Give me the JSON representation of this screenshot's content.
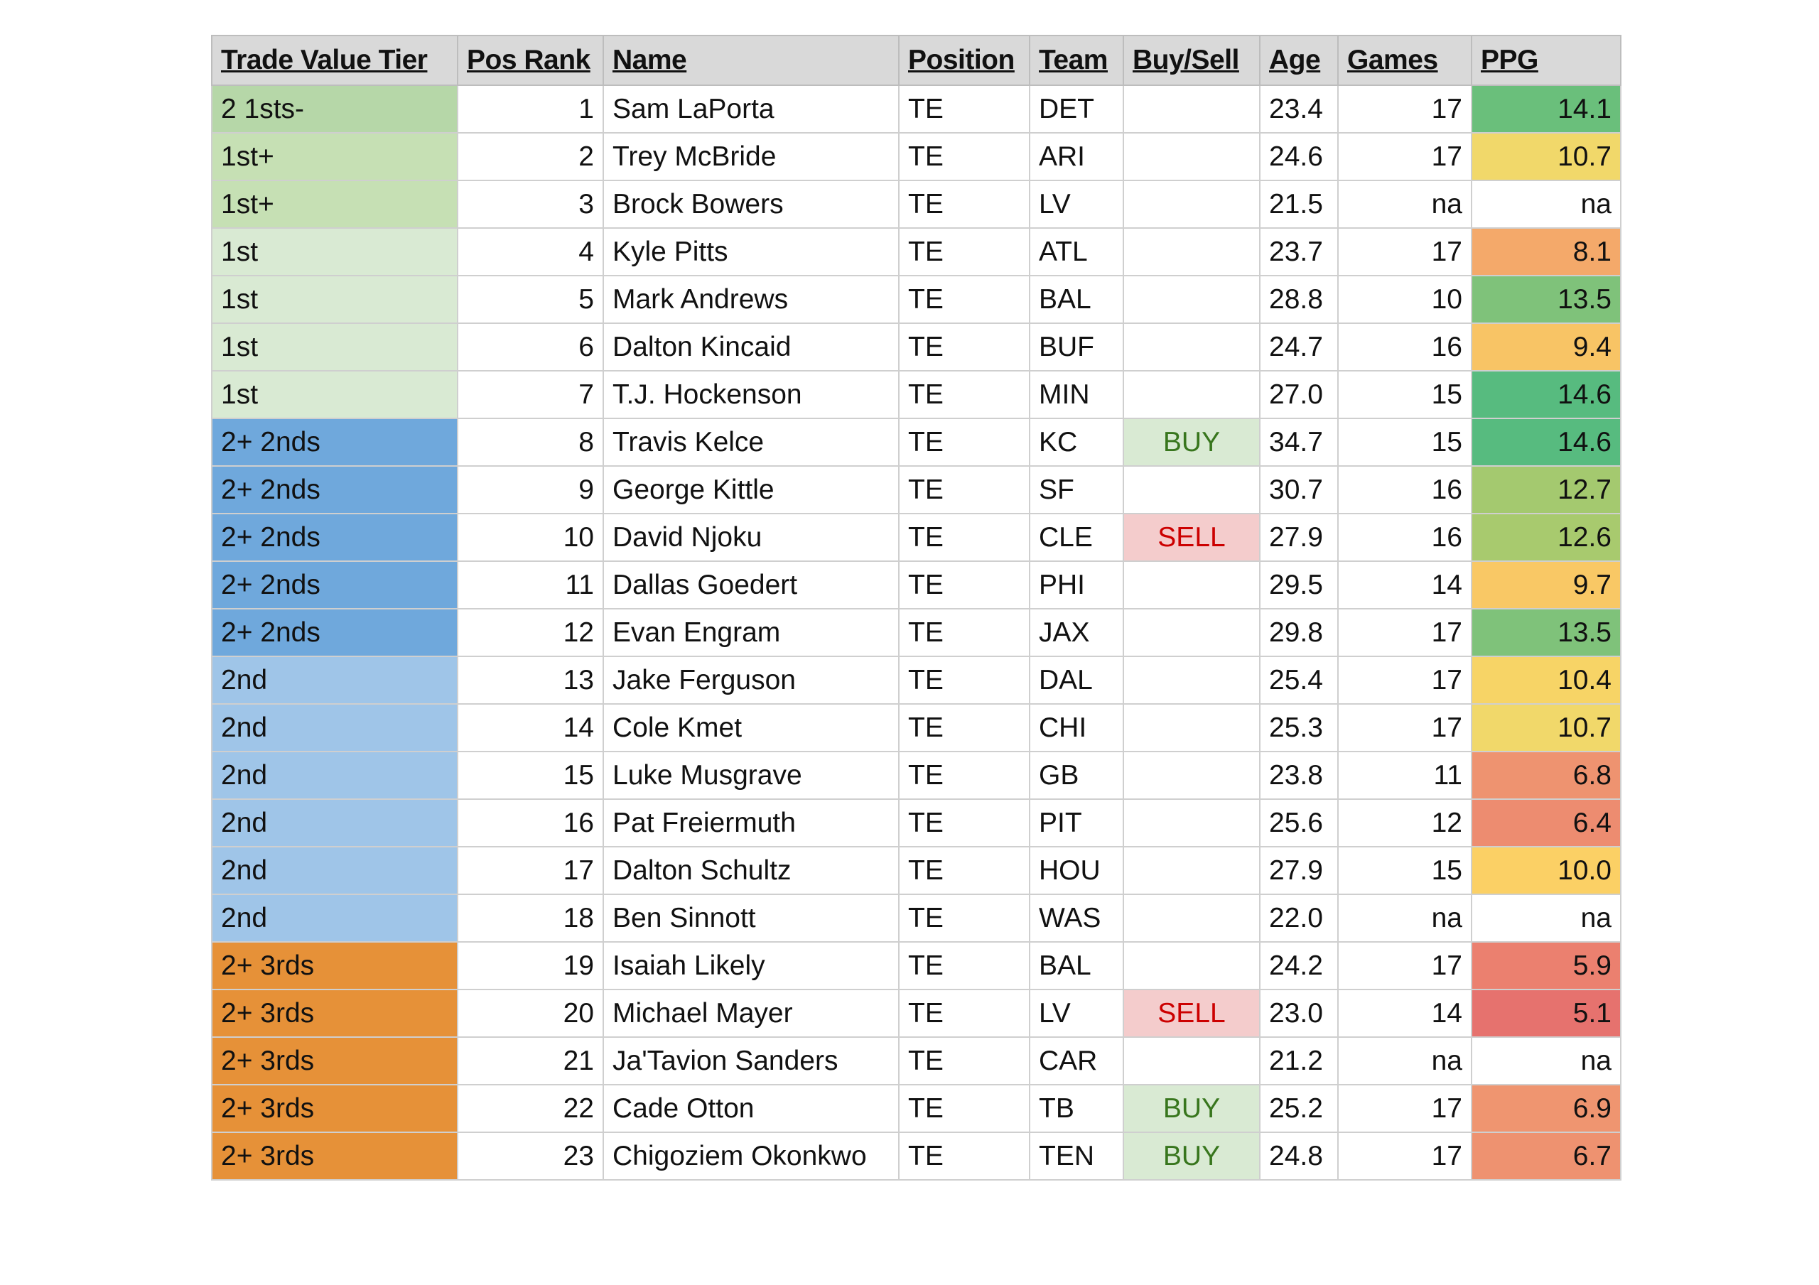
{
  "headers": [
    "Trade Value Tier",
    "Pos Rank",
    "Name",
    "Position",
    "Team",
    "Buy/Sell",
    "Age",
    "Games",
    "PPG"
  ],
  "tier_colors": {
    "2 1sts-": "#b6d7a8",
    "1st+": "#c6e0b4",
    "1st": "#d9ead3",
    "2+ 2nds": "#6fa8dc",
    "2nd": "#9fc5e8",
    "2+ 3rds": "#e69138"
  },
  "rows": [
    {
      "tier": "2 1sts-",
      "rank": "1",
      "name": "Sam LaPorta",
      "position": "TE",
      "team": "DET",
      "buysell": "",
      "age": "23.4",
      "games": "17",
      "ppg": "14.1",
      "ppg_color": "#6abf7b"
    },
    {
      "tier": "1st+",
      "rank": "2",
      "name": "Trey McBride",
      "position": "TE",
      "team": "ARI",
      "buysell": "",
      "age": "24.6",
      "games": "17",
      "ppg": "10.7",
      "ppg_color": "#f1d86a"
    },
    {
      "tier": "1st+",
      "rank": "3",
      "name": "Brock Bowers",
      "position": "TE",
      "team": "LV",
      "buysell": "",
      "age": "21.5",
      "games": "na",
      "ppg": "na",
      "ppg_color": "#ffffff"
    },
    {
      "tier": "1st",
      "rank": "4",
      "name": "Kyle Pitts",
      "position": "TE",
      "team": "ATL",
      "buysell": "",
      "age": "23.7",
      "games": "17",
      "ppg": "8.1",
      "ppg_color": "#f4a96a"
    },
    {
      "tier": "1st",
      "rank": "5",
      "name": "Mark Andrews",
      "position": "TE",
      "team": "BAL",
      "buysell": "",
      "age": "28.8",
      "games": "10",
      "ppg": "13.5",
      "ppg_color": "#7fc27a"
    },
    {
      "tier": "1st",
      "rank": "6",
      "name": "Dalton Kincaid",
      "position": "TE",
      "team": "BUF",
      "buysell": "",
      "age": "24.7",
      "games": "16",
      "ppg": "9.4",
      "ppg_color": "#f8c465"
    },
    {
      "tier": "1st",
      "rank": "7",
      "name": "T.J. Hockenson",
      "position": "TE",
      "team": "MIN",
      "buysell": "",
      "age": "27.0",
      "games": "15",
      "ppg": "14.6",
      "ppg_color": "#57bb7f"
    },
    {
      "tier": "2+ 2nds",
      "rank": "8",
      "name": "Travis Kelce",
      "position": "TE",
      "team": "KC",
      "buysell": "BUY",
      "age": "34.7",
      "games": "15",
      "ppg": "14.6",
      "ppg_color": "#57bb7f"
    },
    {
      "tier": "2+ 2nds",
      "rank": "9",
      "name": "George Kittle",
      "position": "TE",
      "team": "SF",
      "buysell": "",
      "age": "30.7",
      "games": "16",
      "ppg": "12.7",
      "ppg_color": "#a4c96f"
    },
    {
      "tier": "2+ 2nds",
      "rank": "10",
      "name": "David Njoku",
      "position": "TE",
      "team": "CLE",
      "buysell": "SELL",
      "age": "27.9",
      "games": "16",
      "ppg": "12.6",
      "ppg_color": "#a8ca6e"
    },
    {
      "tier": "2+ 2nds",
      "rank": "11",
      "name": "Dallas Goedert",
      "position": "TE",
      "team": "PHI",
      "buysell": "",
      "age": "29.5",
      "games": "14",
      "ppg": "9.7",
      "ppg_color": "#f9c865"
    },
    {
      "tier": "2+ 2nds",
      "rank": "12",
      "name": "Evan Engram",
      "position": "TE",
      "team": "JAX",
      "buysell": "",
      "age": "29.8",
      "games": "17",
      "ppg": "13.5",
      "ppg_color": "#7fc27a"
    },
    {
      "tier": "2nd",
      "rank": "13",
      "name": "Jake Ferguson",
      "position": "TE",
      "team": "DAL",
      "buysell": "",
      "age": "25.4",
      "games": "17",
      "ppg": "10.4",
      "ppg_color": "#f7d466"
    },
    {
      "tier": "2nd",
      "rank": "14",
      "name": "Cole Kmet",
      "position": "TE",
      "team": "CHI",
      "buysell": "",
      "age": "25.3",
      "games": "17",
      "ppg": "10.7",
      "ppg_color": "#f1d86a"
    },
    {
      "tier": "2nd",
      "rank": "15",
      "name": "Luke Musgrave",
      "position": "TE",
      "team": "GB",
      "buysell": "",
      "age": "23.8",
      "games": "11",
      "ppg": "6.8",
      "ppg_color": "#ee9370"
    },
    {
      "tier": "2nd",
      "rank": "16",
      "name": "Pat Freiermuth",
      "position": "TE",
      "team": "PIT",
      "buysell": "",
      "age": "25.6",
      "games": "12",
      "ppg": "6.4",
      "ppg_color": "#ed8c70"
    },
    {
      "tier": "2nd",
      "rank": "17",
      "name": "Dalton Schultz",
      "position": "TE",
      "team": "HOU",
      "buysell": "",
      "age": "27.9",
      "games": "15",
      "ppg": "10.0",
      "ppg_color": "#fbd065"
    },
    {
      "tier": "2nd",
      "rank": "18",
      "name": "Ben Sinnott",
      "position": "TE",
      "team": "WAS",
      "buysell": "",
      "age": "22.0",
      "games": "na",
      "ppg": "na",
      "ppg_color": "#ffffff"
    },
    {
      "tier": "2+ 3rds",
      "rank": "19",
      "name": "Isaiah Likely",
      "position": "TE",
      "team": "BAL",
      "buysell": "",
      "age": "24.2",
      "games": "17",
      "ppg": "5.9",
      "ppg_color": "#eb806f"
    },
    {
      "tier": "2+ 3rds",
      "rank": "20",
      "name": "Michael Mayer",
      "position": "TE",
      "team": "LV",
      "buysell": "SELL",
      "age": "23.0",
      "games": "14",
      "ppg": "5.1",
      "ppg_color": "#e6726e"
    },
    {
      "tier": "2+ 3rds",
      "rank": "21",
      "name": "Ja'Tavion Sanders",
      "position": "TE",
      "team": "CAR",
      "buysell": "",
      "age": "21.2",
      "games": "na",
      "ppg": "na",
      "ppg_color": "#ffffff"
    },
    {
      "tier": "2+ 3rds",
      "rank": "22",
      "name": "Cade Otton",
      "position": "TE",
      "team": "TB",
      "buysell": "BUY",
      "age": "25.2",
      "games": "17",
      "ppg": "6.9",
      "ppg_color": "#ef9570"
    },
    {
      "tier": "2+ 3rds",
      "rank": "23",
      "name": "Chigoziem Okonkwo",
      "position": "TE",
      "team": "TEN",
      "buysell": "BUY",
      "age": "24.8",
      "games": "17",
      "ppg": "6.7",
      "ppg_color": "#ee9270"
    }
  ]
}
